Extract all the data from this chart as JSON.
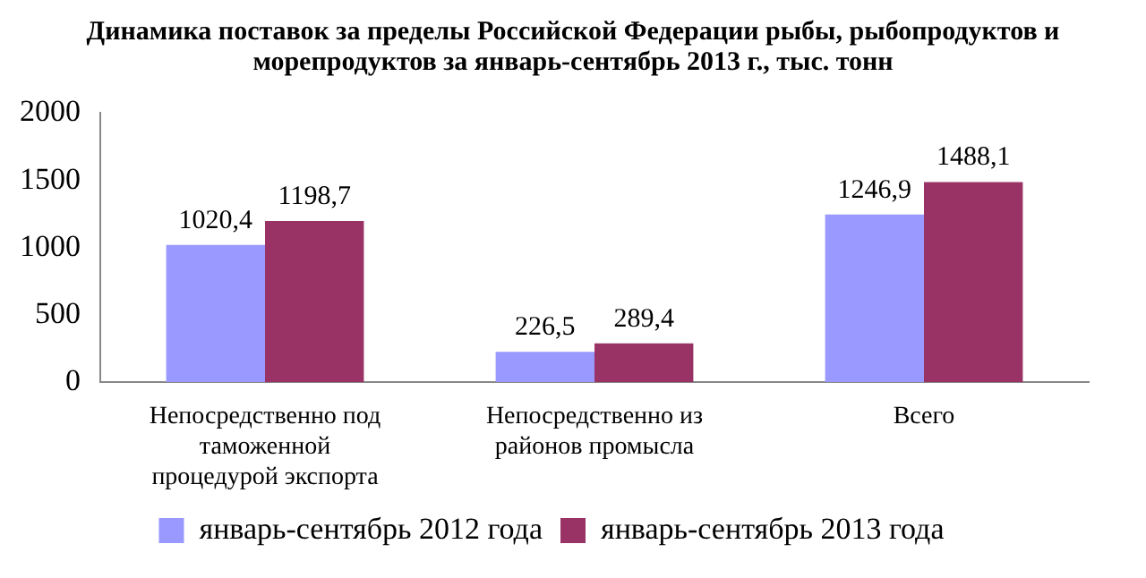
{
  "chart_data": {
    "type": "bar",
    "title": "Динамика поставок  за пределы Российской Федерации рыбы, рыбопродуктов и морепродуктов за январь-сентябрь 2013 г., тыс. тонн",
    "categories": [
      "Непосредственно под таможенной процедурой экспорта",
      "Непосредственно из районов промысла",
      "Всего"
    ],
    "series": [
      {
        "name": "январь-сентябрь 2012 года",
        "color": "#9999ff",
        "values": [
          1020.4,
          226.5,
          1246.9
        ],
        "value_labels": [
          "1020,4",
          "226,5",
          "1246,9"
        ]
      },
      {
        "name": "январь-сентябрь 2013 года",
        "color": "#993366",
        "values": [
          1198.7,
          289.4,
          1488.1
        ],
        "value_labels": [
          "1198,7",
          "289,4",
          "1488,1"
        ]
      }
    ],
    "ylim": [
      0,
      2000
    ],
    "yticks": [
      0,
      500,
      1000,
      1500,
      2000
    ],
    "grid": false,
    "legend": "bottom"
  }
}
